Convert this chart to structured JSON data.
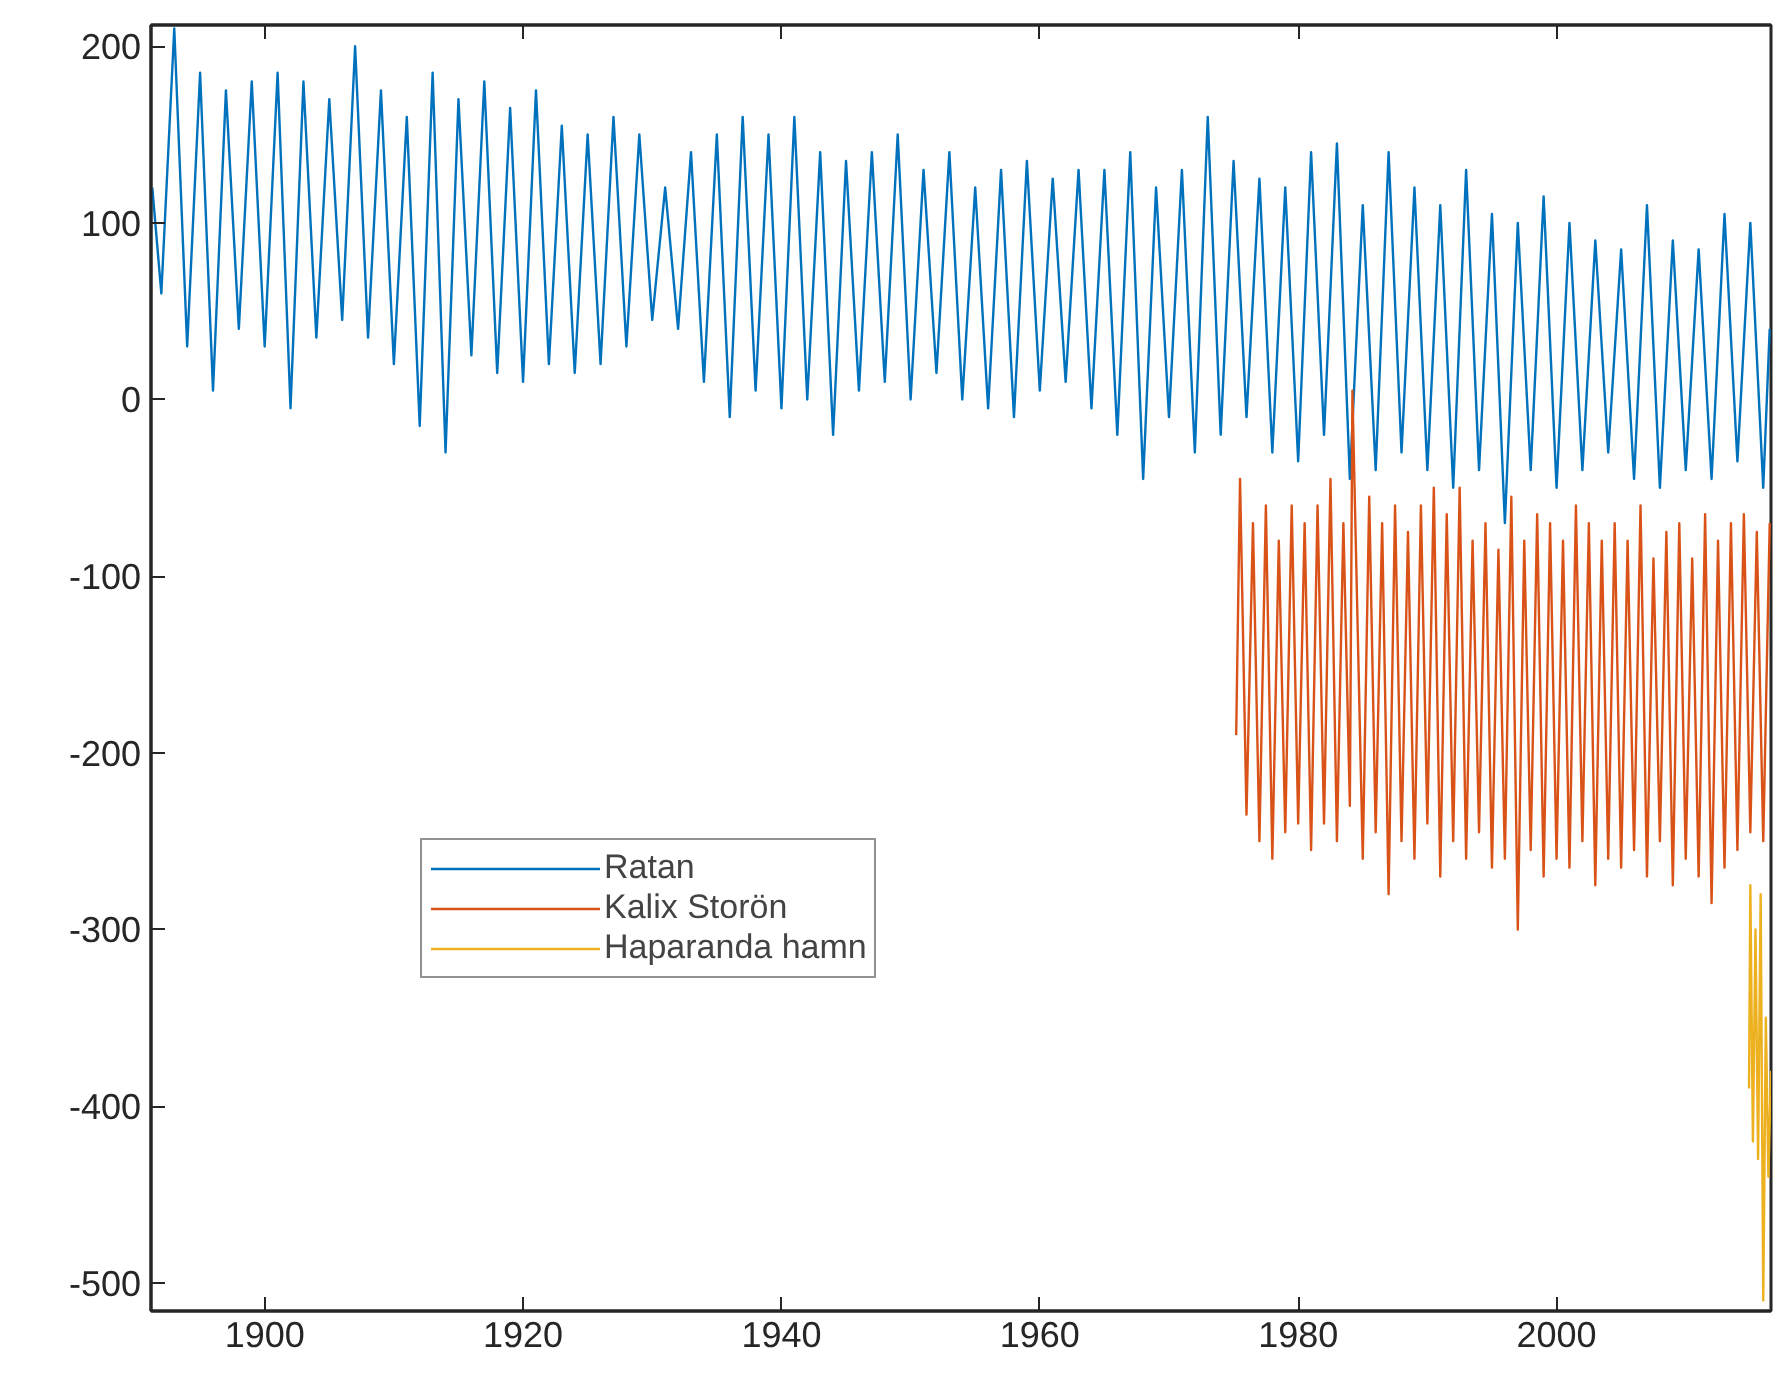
{
  "chart_data": {
    "type": "line",
    "xlim": [
      1891.2,
      2016.6
    ],
    "ylim": [
      -516,
      212
    ],
    "xticks": [
      1900,
      1920,
      1940,
      1960,
      1980,
      2000
    ],
    "yticks": [
      -500,
      -400,
      -300,
      -200,
      -100,
      0,
      100,
      200
    ],
    "grid": false,
    "legend": "bottom left",
    "line_style": "solid",
    "marker": "none",
    "series": [
      {
        "name": "Ratan",
        "color": "#0072bd",
        "x": [
          1891.3,
          1892,
          1893,
          1894,
          1895,
          1896,
          1897,
          1898,
          1899,
          1900,
          1901,
          1902,
          1903,
          1904,
          1905,
          1906,
          1907,
          1908,
          1909,
          1910,
          1911,
          1912,
          1913,
          1914,
          1915,
          1916,
          1917,
          1918,
          1919,
          1920,
          1921,
          1922,
          1923,
          1924,
          1925,
          1926,
          1927,
          1928,
          1929,
          1930,
          1931,
          1932,
          1933,
          1934,
          1935,
          1936,
          1937,
          1938,
          1939,
          1940,
          1941,
          1942,
          1943,
          1944,
          1945,
          1946,
          1947,
          1948,
          1949,
          1950,
          1951,
          1952,
          1953,
          1954,
          1955,
          1956,
          1957,
          1958,
          1959,
          1960,
          1961,
          1962,
          1963,
          1964,
          1965,
          1966,
          1967,
          1968,
          1969,
          1970,
          1971,
          1972,
          1973,
          1974,
          1975,
          1976,
          1977,
          1978,
          1979,
          1980,
          1981,
          1982,
          1983,
          1984,
          1985,
          1986,
          1987,
          1988,
          1989,
          1990,
          1991,
          1992,
          1993,
          1994,
          1995,
          1996,
          1997,
          1998,
          1999,
          2000,
          2001,
          2002,
          2003,
          2004,
          2005,
          2006,
          2007,
          2008,
          2009,
          2010,
          2011,
          2012,
          2013,
          2014,
          2015,
          2016,
          2016.5
        ],
        "values": [
          120,
          60,
          210,
          30,
          185,
          5,
          175,
          40,
          180,
          30,
          185,
          -5,
          180,
          35,
          170,
          45,
          200,
          35,
          175,
          20,
          160,
          -15,
          185,
          -30,
          170,
          25,
          180,
          15,
          165,
          10,
          175,
          20,
          155,
          15,
          150,
          20,
          160,
          30,
          150,
          45,
          120,
          40,
          140,
          10,
          150,
          -10,
          160,
          5,
          150,
          -5,
          160,
          0,
          140,
          -20,
          135,
          5,
          140,
          10,
          150,
          0,
          130,
          15,
          140,
          0,
          120,
          -5,
          130,
          -10,
          135,
          5,
          125,
          10,
          130,
          -5,
          130,
          -20,
          140,
          -45,
          120,
          -10,
          130,
          -30,
          160,
          -20,
          135,
          -10,
          125,
          -30,
          120,
          -35,
          140,
          -20,
          145,
          -45,
          110,
          -40,
          140,
          -30,
          120,
          -40,
          110,
          -50,
          130,
          -40,
          105,
          -70,
          100,
          -40,
          115,
          -50,
          100,
          -40,
          90,
          -30,
          85,
          -45,
          110,
          -50,
          90,
          -40,
          85,
          -45,
          105,
          -35,
          100,
          -50,
          40
        ]
      },
      {
        "name": "Kalix Storön",
        "color": "#d95319",
        "x": [
          1975.2,
          1975.5,
          1976,
          1976.5,
          1977,
          1977.5,
          1978,
          1978.5,
          1979,
          1979.5,
          1980,
          1980.5,
          1981,
          1981.5,
          1982,
          1982.5,
          1983,
          1983.5,
          1984,
          1984.2,
          1985,
          1985.5,
          1986,
          1986.5,
          1987,
          1987.5,
          1988,
          1988.5,
          1989,
          1989.5,
          1990,
          1990.5,
          1991,
          1991.5,
          1992,
          1992.5,
          1993,
          1993.5,
          1994,
          1994.5,
          1995,
          1995.5,
          1996,
          1996.5,
          1997,
          1997.5,
          1998,
          1998.5,
          1999,
          1999.5,
          2000,
          2000.5,
          2001,
          2001.5,
          2002,
          2002.5,
          2003,
          2003.5,
          2004,
          2004.5,
          2005,
          2005.5,
          2006,
          2006.5,
          2007,
          2007.5,
          2008,
          2008.5,
          2009,
          2009.5,
          2010,
          2010.5,
          2011,
          2011.5,
          2012,
          2012.5,
          2013,
          2013.5,
          2014,
          2014.5,
          2015,
          2015.5,
          2016,
          2016.5
        ],
        "values": [
          -190,
          -45,
          -235,
          -70,
          -250,
          -60,
          -260,
          -80,
          -245,
          -60,
          -240,
          -70,
          -255,
          -60,
          -240,
          -45,
          -250,
          -70,
          -230,
          5,
          -260,
          -55,
          -245,
          -70,
          -280,
          -60,
          -250,
          -75,
          -260,
          -60,
          -240,
          -50,
          -270,
          -65,
          -250,
          -50,
          -260,
          -80,
          -245,
          -70,
          -265,
          -85,
          -260,
          -55,
          -300,
          -80,
          -255,
          -65,
          -270,
          -70,
          -260,
          -80,
          -265,
          -60,
          -250,
          -70,
          -275,
          -80,
          -260,
          -70,
          -265,
          -80,
          -255,
          -60,
          -270,
          -90,
          -250,
          -75,
          -275,
          -70,
          -260,
          -90,
          -270,
          -65,
          -285,
          -80,
          -265,
          -70,
          -255,
          -65,
          -245,
          -75,
          -250,
          -70
        ]
      },
      {
        "name": "Haparanda hamn",
        "color": "#edb120",
        "x": [
          2014.9,
          2015.0,
          2015.2,
          2015.4,
          2015.6,
          2015.8,
          2016.0,
          2016.2,
          2016.4,
          2016.6
        ],
        "values": [
          -390,
          -275,
          -420,
          -300,
          -430,
          -280,
          -510,
          -350,
          -440,
          -380
        ]
      }
    ]
  }
}
